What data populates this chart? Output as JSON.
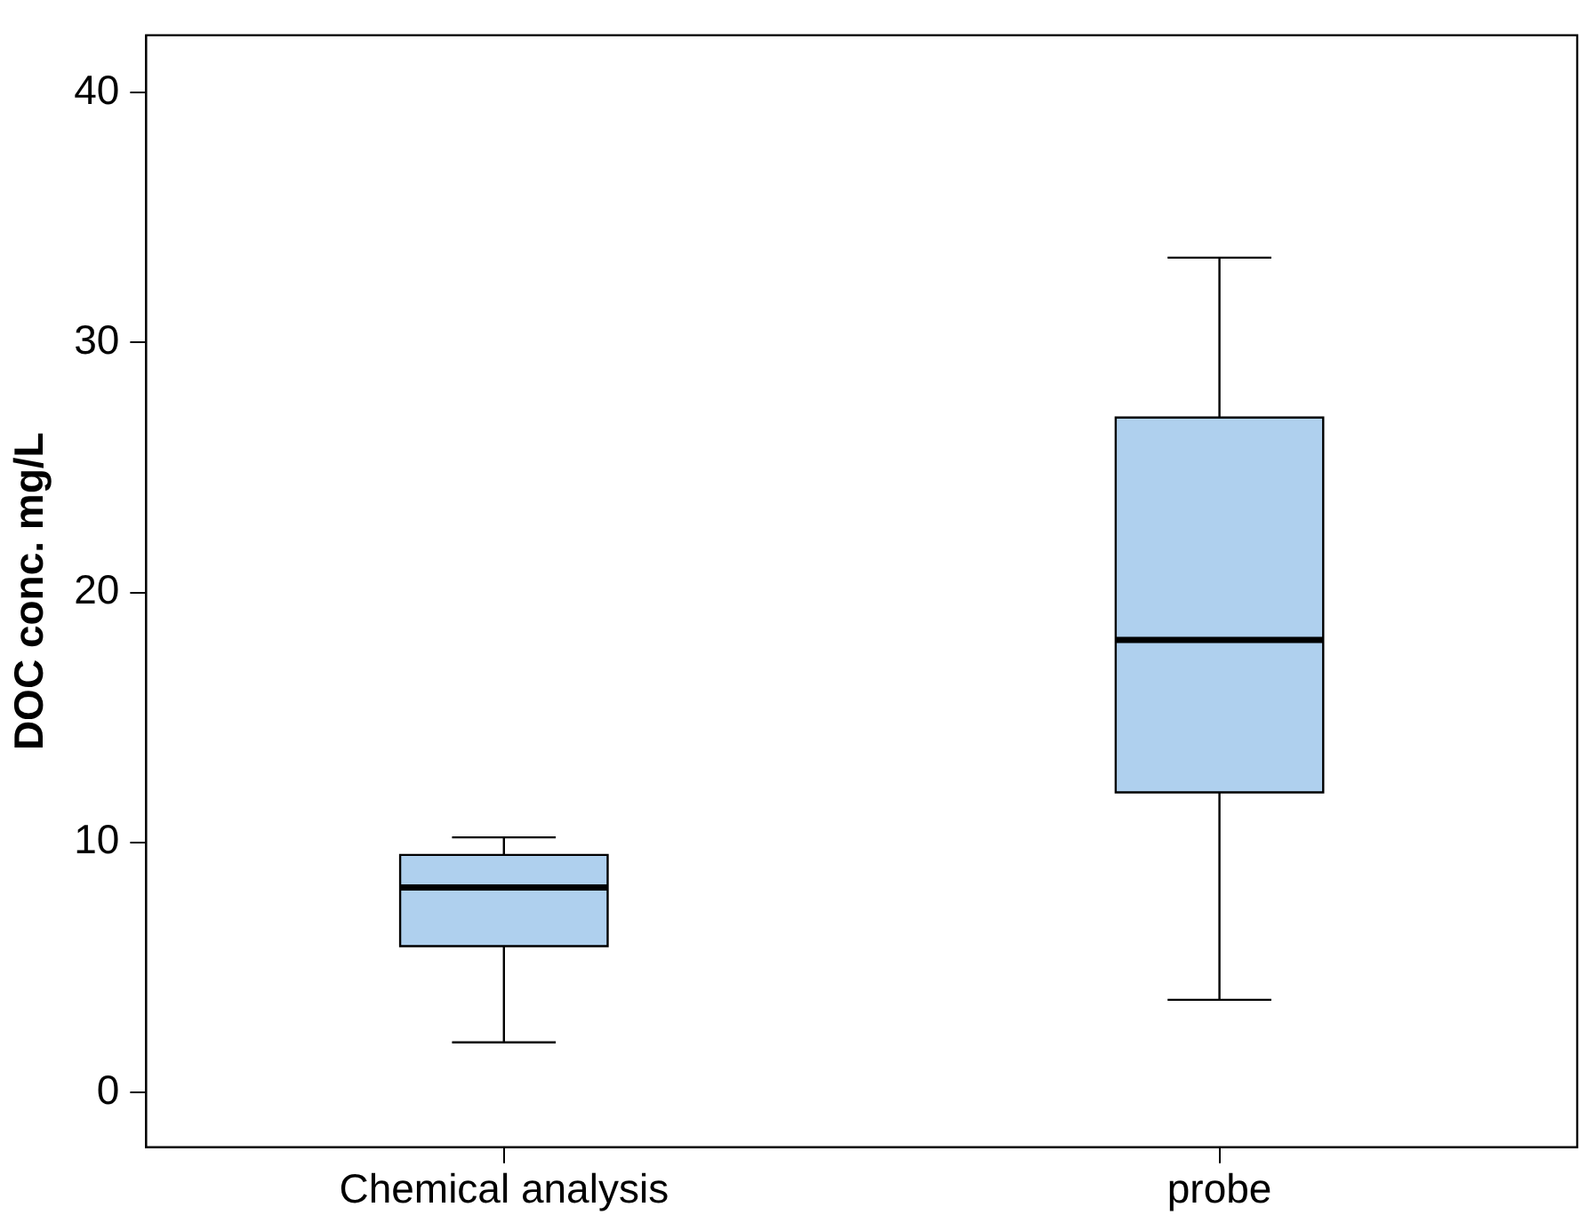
{
  "chart_data": {
    "type": "box",
    "ylabel": "DOC conc. mg/L",
    "categories": [
      "Chemical analysis",
      "probe"
    ],
    "color": "#afd0ee",
    "boxes": [
      {
        "low": 2.0,
        "q1": 5.85,
        "median": 8.2,
        "q3": 9.5,
        "high": 10.2
      },
      {
        "low": 3.7,
        "q1": 12.0,
        "median": 18.1,
        "q3": 27.0,
        "high": 33.4
      }
    ],
    "ylim": [
      -2.2,
      42.3
    ],
    "yticks": [
      0,
      10,
      20,
      30,
      40
    ],
    "grid": false,
    "legend": false
  }
}
